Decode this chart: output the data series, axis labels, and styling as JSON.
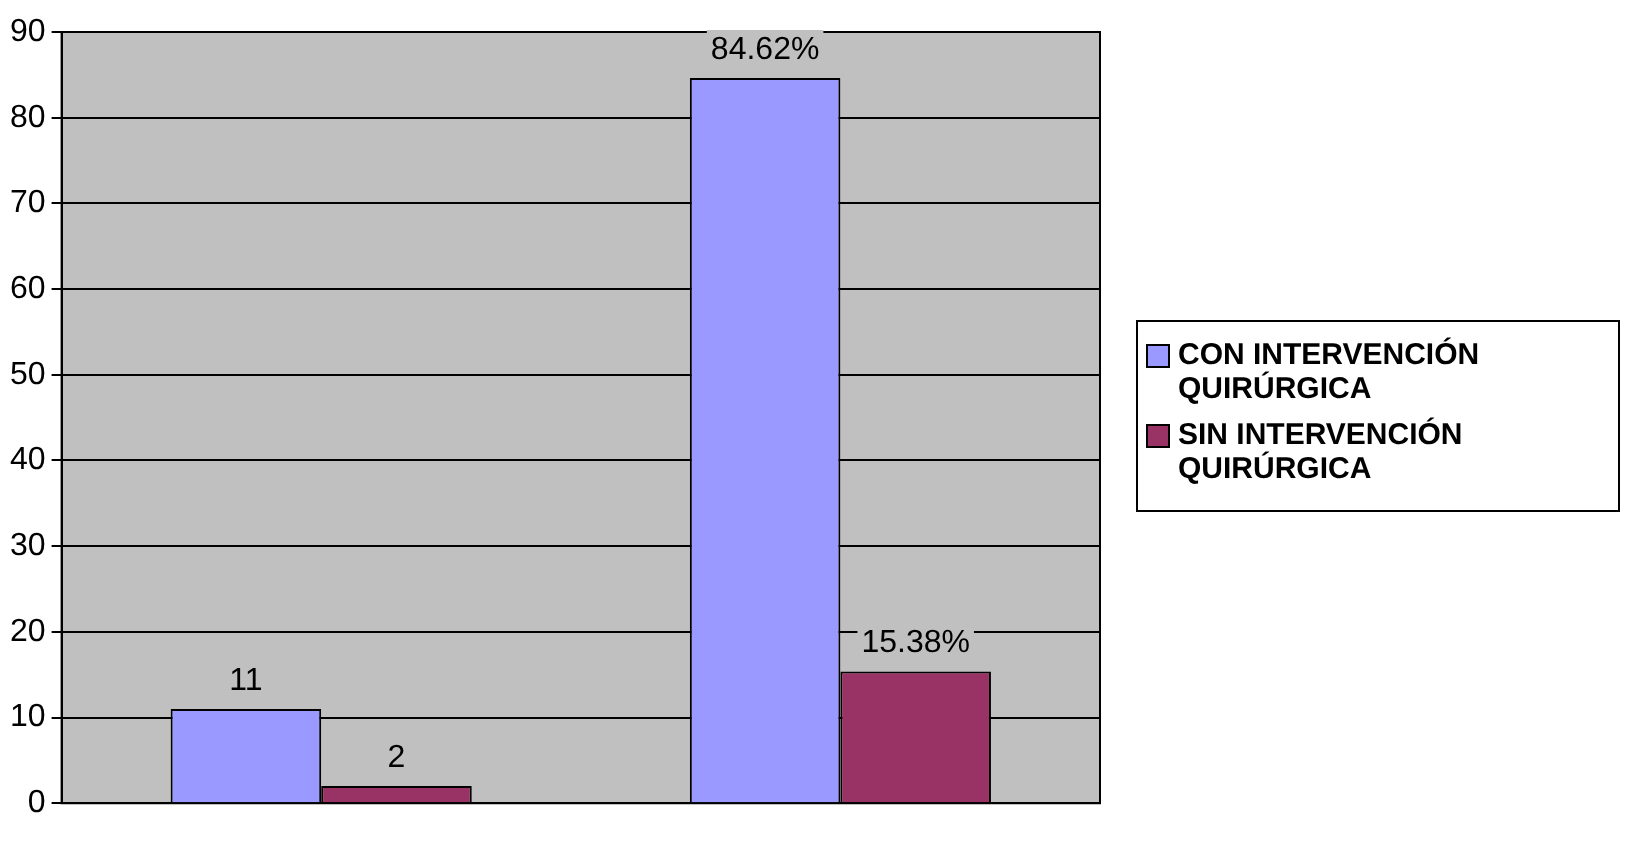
{
  "chart_data": {
    "type": "bar",
    "categories": [
      null,
      null
    ],
    "series": [
      {
        "name": "CON INTERVENCIÓN QUIRÚRGICA",
        "color": "#9999ff",
        "values": [
          11,
          84.62
        ],
        "value_labels": [
          "11",
          "84.62%"
        ]
      },
      {
        "name": "SIN INTERVENCIÓN QUIRÚRGICA",
        "color": "#993366",
        "values": [
          2,
          15.38
        ],
        "value_labels": [
          "2",
          "15.38%"
        ]
      }
    ],
    "ylim": [
      0,
      90
    ],
    "yticks": [
      0,
      10,
      20,
      30,
      40,
      50,
      60,
      70,
      80,
      90
    ],
    "grid": "y",
    "legend": "right"
  }
}
